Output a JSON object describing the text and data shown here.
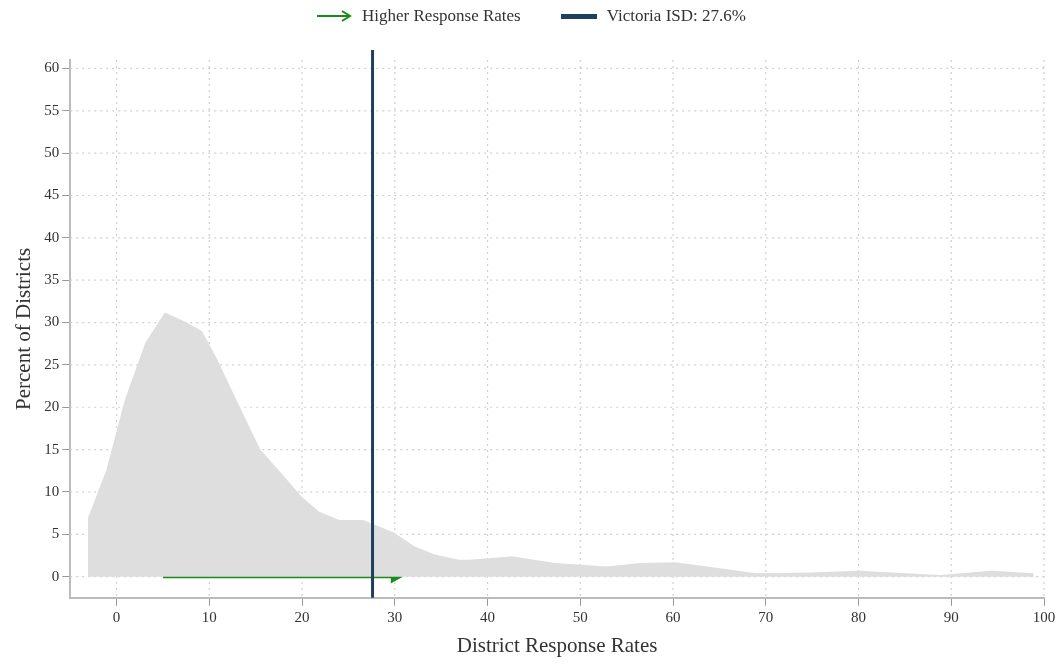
{
  "chart_data": {
    "type": "area",
    "xlabel": "District Response Rates",
    "ylabel": "Percent of Districts",
    "xlim": [
      -5,
      100
    ],
    "xticks": [
      0,
      10,
      20,
      30,
      40,
      50,
      60,
      70,
      80,
      90,
      100
    ],
    "ylim": [
      -2.5,
      61
    ],
    "yticks": [
      0,
      5,
      10,
      15,
      20,
      25,
      30,
      35,
      40,
      45,
      50,
      55,
      60
    ],
    "grid": true,
    "legend": "top",
    "series": [
      {
        "color": "#dedede",
        "x": [
          -3.1,
          -1.1,
          0.9,
          3.1,
          5.2,
          7.4,
          9.2,
          10.7,
          12.9,
          15.5,
          18.1,
          19.9,
          21.8,
          24.0,
          26.6,
          29.9,
          32.1,
          34.3,
          36.9,
          38.0,
          42.6,
          47.3,
          52.8,
          56.5,
          60.2,
          62.9,
          68.9,
          74.9,
          80.0,
          88.8,
          94.3,
          98.9
        ],
        "values": [
          6.9,
          12.6,
          20.9,
          27.6,
          31.2,
          30.1,
          29.0,
          26.0,
          20.9,
          15.0,
          11.8,
          9.5,
          7.7,
          6.7,
          6.7,
          5.2,
          3.6,
          2.6,
          2.0,
          2.0,
          2.4,
          1.6,
          1.2,
          1.6,
          1.7,
          1.3,
          0.4,
          0.5,
          0.7,
          0.2,
          0.7,
          0.4
        ]
      },
      {
        "type": "line",
        "name": "Higher Response Rates",
        "color": "#1a8a1a",
        "x": [
          5,
          30
        ],
        "values": [
          0,
          0
        ]
      }
    ],
    "ref_lines": [
      {
        "axis": "x",
        "value": 27.6,
        "label": "Victoria ISD: 27.6%",
        "color": "#1f3f5f"
      }
    ]
  }
}
